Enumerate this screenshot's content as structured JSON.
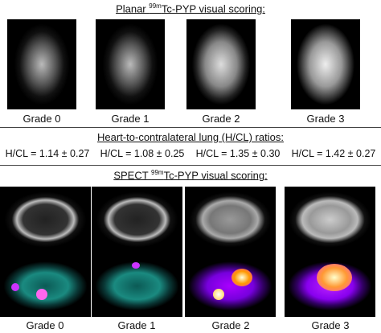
{
  "planar": {
    "title_prefix": "Planar ",
    "title_sup": "99m",
    "title_suffix": "Tc-PYP visual scoring:",
    "grades": [
      "Grade 0",
      "Grade 1",
      "Grade 2",
      "Grade 3"
    ]
  },
  "ratios": {
    "title": "Heart-to-contralateral lung (H/CL) ratios:",
    "values": [
      "H/CL = 1.14 ± 0.27",
      "H/CL = 1.08 ± 0.25",
      "H/CL = 1.35 ± 0.30",
      "H/CL = 1.42 ± 0.27"
    ]
  },
  "spect": {
    "title_prefix": "SPECT ",
    "title_sup": "99m",
    "title_suffix": "Tc-PYP visual scoring:",
    "grades": [
      "Grade 0",
      "Grade 1",
      "Grade 2",
      "Grade 3"
    ]
  }
}
